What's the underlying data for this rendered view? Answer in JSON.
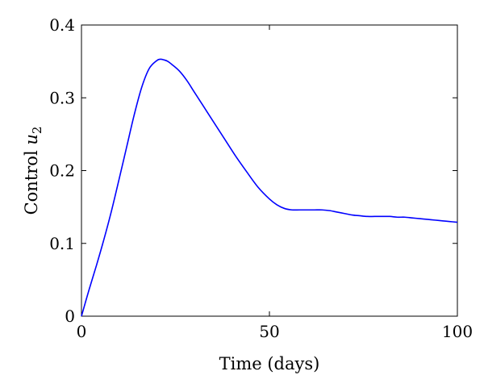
{
  "chart_data": {
    "type": "line",
    "title": "",
    "xlabel": "Time (days)",
    "ylabel": {
      "text": "Control ",
      "variable": "u",
      "subscript": "2"
    },
    "xlim": [
      0,
      100
    ],
    "ylim": [
      0,
      0.4
    ],
    "xticks": [
      "0",
      "50",
      "100"
    ],
    "yticks": [
      "0",
      "0.1",
      "0.2",
      "0.3",
      "0.4"
    ],
    "grid": false,
    "legend": "none",
    "series": [
      {
        "color": "#0000ff",
        "x": [
          0,
          2,
          4,
          6,
          8,
          10,
          12,
          14,
          16,
          18,
          20,
          21,
          22,
          23,
          24,
          26,
          28,
          30,
          32,
          35,
          38,
          41,
          44,
          47,
          50,
          52,
          54,
          56,
          58,
          60,
          62,
          64,
          66,
          68,
          70,
          72,
          74,
          76,
          78,
          80,
          82,
          84,
          86,
          88,
          90,
          92,
          94,
          96,
          98,
          100
        ],
        "y": [
          0,
          0.036,
          0.07,
          0.106,
          0.145,
          0.188,
          0.232,
          0.276,
          0.314,
          0.34,
          0.351,
          0.353,
          0.352,
          0.35,
          0.346,
          0.337,
          0.324,
          0.308,
          0.292,
          0.268,
          0.244,
          0.22,
          0.198,
          0.177,
          0.161,
          0.153,
          0.148,
          0.146,
          0.146,
          0.146,
          0.146,
          0.146,
          0.145,
          0.143,
          0.141,
          0.139,
          0.138,
          0.137,
          0.137,
          0.137,
          0.137,
          0.136,
          0.136,
          0.135,
          0.134,
          0.133,
          0.132,
          0.131,
          0.13,
          0.129
        ]
      }
    ]
  }
}
